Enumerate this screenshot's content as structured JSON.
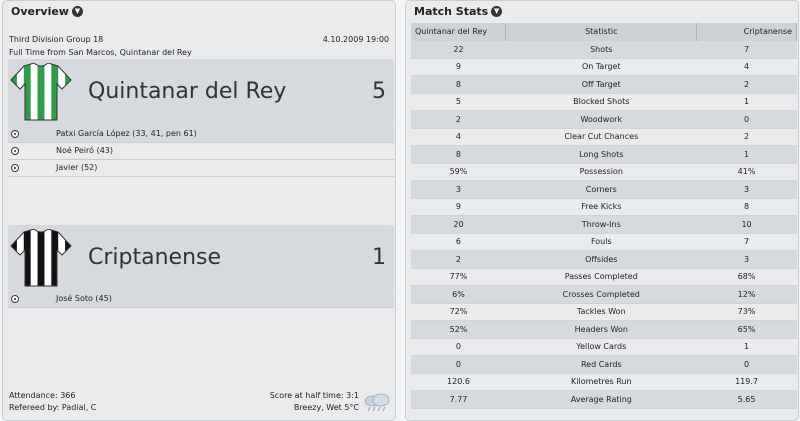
{
  "overview": {
    "header": "Overview",
    "competition": "Third Division Group 18",
    "date": "4.10.2009 19:00",
    "venue_line": "Full Time from San Marcos, Quintanar del Rey",
    "home": {
      "name": "Quintanar del Rey",
      "score": "5",
      "shirt_colors": [
        "#2e9c48",
        "#ffffff"
      ],
      "scorers": [
        "Patxi García López (33, 41, pen 61)",
        "Noé Peiró (43)",
        "Javier (52)"
      ]
    },
    "away": {
      "name": "Criptanense",
      "score": "1",
      "shirt_colors": [
        "#111111",
        "#ffffff"
      ],
      "scorers": [
        "José Soto (45)"
      ]
    },
    "attendance": "Attendance: 366",
    "referee": "Refereed by: Padial, C",
    "half_time": "Score at half time: 3:1",
    "weather": "Breezy, Wet 5°C",
    "weather_icon": "rain-cloud-icon"
  },
  "stats": {
    "header": "Match Stats",
    "columns": {
      "home": "Quintanar del Rey",
      "stat": "Statistic",
      "away": "Criptanense"
    },
    "rows": [
      {
        "home": "22",
        "stat": "Shots",
        "away": "7"
      },
      {
        "home": "9",
        "stat": "On Target",
        "away": "4"
      },
      {
        "home": "8",
        "stat": "Off Target",
        "away": "2"
      },
      {
        "home": "5",
        "stat": "Blocked Shots",
        "away": "1"
      },
      {
        "home": "2",
        "stat": "Woodwork",
        "away": "0"
      },
      {
        "home": "4",
        "stat": "Clear Cut Chances",
        "away": "2"
      },
      {
        "home": "8",
        "stat": "Long Shots",
        "away": "1"
      },
      {
        "home": "59%",
        "stat": "Possession",
        "away": "41%"
      },
      {
        "home": "3",
        "stat": "Corners",
        "away": "3"
      },
      {
        "home": "9",
        "stat": "Free Kicks",
        "away": "8"
      },
      {
        "home": "20",
        "stat": "Throw-Ins",
        "away": "10"
      },
      {
        "home": "6",
        "stat": "Fouls",
        "away": "7"
      },
      {
        "home": "2",
        "stat": "Offsides",
        "away": "3"
      },
      {
        "home": "77%",
        "stat": "Passes Completed",
        "away": "68%"
      },
      {
        "home": "6%",
        "stat": "Crosses Completed",
        "away": "12%"
      },
      {
        "home": "72%",
        "stat": "Tackles Won",
        "away": "73%"
      },
      {
        "home": "52%",
        "stat": "Headers Won",
        "away": "65%"
      },
      {
        "home": "0",
        "stat": "Yellow Cards",
        "away": "1"
      },
      {
        "home": "0",
        "stat": "Red Cards",
        "away": "0"
      },
      {
        "home": "120.6",
        "stat": "Kilometres Run",
        "away": "119.7"
      },
      {
        "home": "7.77",
        "stat": "Average Rating",
        "away": "5.65"
      }
    ]
  }
}
